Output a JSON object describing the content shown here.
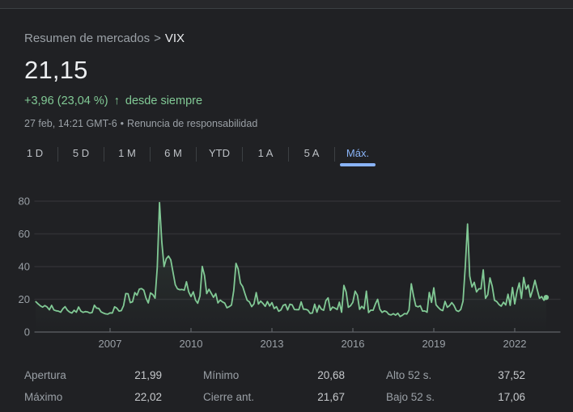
{
  "theme": {
    "background": "#202124",
    "accent_green": "#81c995",
    "accent_blue": "#8ab4f8",
    "text_primary": "#e8eaed",
    "text_muted": "#9aa0a6",
    "gridline": "#303134",
    "axis": "#5f6368"
  },
  "header": {
    "breadcrumb": {
      "path": "Resumen de mercados",
      "separator": ">",
      "current": "VIX"
    },
    "price": "21,15",
    "change": {
      "delta": "+3,96",
      "percent": "(23,04 %)",
      "arrow": "↑",
      "period": "desde siempre"
    },
    "meta": {
      "time": "27 feb, 14:21 GMT-6",
      "separator": "•",
      "disclaimer": "Renuncia de responsabilidad"
    }
  },
  "tabs": [
    {
      "name": "tab-1d",
      "label": "1 D",
      "selected": false
    },
    {
      "name": "tab-5d",
      "label": "5 D",
      "selected": false
    },
    {
      "name": "tab-1m",
      "label": "1 M",
      "selected": false
    },
    {
      "name": "tab-6m",
      "label": "6 M",
      "selected": false
    },
    {
      "name": "tab-ytd",
      "label": "YTD",
      "selected": false
    },
    {
      "name": "tab-1a",
      "label": "1 A",
      "selected": false
    },
    {
      "name": "tab-5a",
      "label": "5 A",
      "selected": false
    },
    {
      "name": "tab-max",
      "label": "Máx.",
      "selected": true
    }
  ],
  "chart_data": {
    "type": "line",
    "series_name": "VIX",
    "line_color": "#81c995",
    "grid": true,
    "x_ticks": [
      2007,
      2010,
      2013,
      2016,
      2019,
      2022
    ],
    "y_ticks": [
      0,
      20,
      40,
      60,
      80
    ],
    "ylim": [
      0,
      80
    ],
    "x_start": 2004.25,
    "x_step": 0.083333,
    "current": 21.15,
    "values": [
      18.5,
      17.2,
      16.0,
      15.2,
      16.2,
      15.3,
      13.6,
      16.3,
      13.5,
      13.0,
      12.8,
      12.1,
      14.2,
      15.5,
      13.4,
      12.2,
      11.6,
      13.3,
      12.1,
      15.3,
      12.8,
      12.0,
      12.5,
      12.3,
      11.6,
      11.9,
      16.4,
      14.6,
      14.4,
      12.3,
      11.6,
      11.1,
      10.9,
      11.7,
      11.6,
      15.4,
      14.6,
      12.8,
      13.1,
      16.2,
      23.5,
      23.4,
      18.0,
      18.5,
      24.1,
      22.5,
      26.2,
      26.5,
      25.6,
      20.8,
      17.8,
      23.9,
      22.9,
      20.7,
      39.4,
      79.1,
      55.3,
      40.0,
      44.8,
      46.4,
      44.1,
      36.5,
      28.9,
      26.4,
      25.9,
      26.0,
      25.6,
      30.7,
      24.5,
      21.7,
      24.6,
      19.5,
      17.6,
      22.1,
      40.1,
      34.5,
      23.5,
      26.1,
      23.7,
      21.2,
      23.5,
      17.8,
      19.5,
      18.4,
      17.7,
      14.8,
      15.5,
      16.5,
      25.3,
      42.0,
      38.5,
      29.9,
      27.8,
      23.4,
      19.4,
      18.4,
      15.5,
      17.2,
      24.1,
      17.1,
      18.9,
      17.5,
      15.7,
      18.6,
      15.9,
      18.0,
      14.3,
      15.5,
      12.7,
      13.5,
      16.3,
      16.9,
      13.5,
      17.0,
      16.6,
      13.8,
      13.7,
      13.7,
      18.4,
      14.0,
      13.9,
      13.4,
      11.4,
      11.6,
      17.0,
      12.1,
      16.3,
      14.0,
      13.3,
      19.2,
      20.9,
      13.3,
      15.3,
      14.6,
      13.8,
      18.2,
      12.1,
      28.5,
      24.5,
      15.1,
      16.1,
      18.2,
      25.0,
      22.5,
      13.9,
      15.7,
      14.2,
      25.0,
      11.9,
      13.4,
      13.3,
      17.1,
      20.0,
      14.0,
      12.0,
      12.9,
      12.4,
      10.8,
      10.4,
      11.2,
      10.3,
      11.5,
      9.5,
      10.2,
      11.3,
      11.0,
      13.5,
      29.5,
      22.0,
      15.9,
      15.4,
      16.1,
      12.8,
      12.9,
      12.1,
      24.2,
      18.1,
      27.0,
      16.6,
      15.0,
      13.7,
      13.1,
      18.7,
      15.1,
      16.1,
      18.0,
      16.2,
      13.2,
      12.6,
      13.8,
      18.8,
      40.1,
      66.0,
      34.2,
      27.5,
      30.4,
      24.5,
      26.4,
      26.4,
      38.0,
      20.6,
      22.8,
      33.1,
      28.0,
      19.4,
      18.6,
      16.8,
      15.8,
      18.2,
      16.5,
      23.1,
      16.3,
      27.2,
      17.2,
      24.8,
      30.0,
      20.6,
      33.4,
      26.2,
      28.7,
      21.3,
      25.9,
      31.6,
      25.9,
      20.6,
      21.7,
      19.4,
      21.15
    ]
  },
  "stats": {
    "columns": [
      [
        {
          "label": "Apertura",
          "value": "21,99"
        },
        {
          "label": "Máximo",
          "value": "22,02"
        }
      ],
      [
        {
          "label": "Mínimo",
          "value": "20,68"
        },
        {
          "label": "Cierre ant.",
          "value": "21,67"
        }
      ],
      [
        {
          "label": "Alto 52 s.",
          "value": "37,52"
        },
        {
          "label": "Bajo 52 s.",
          "value": "17,06"
        }
      ]
    ]
  }
}
